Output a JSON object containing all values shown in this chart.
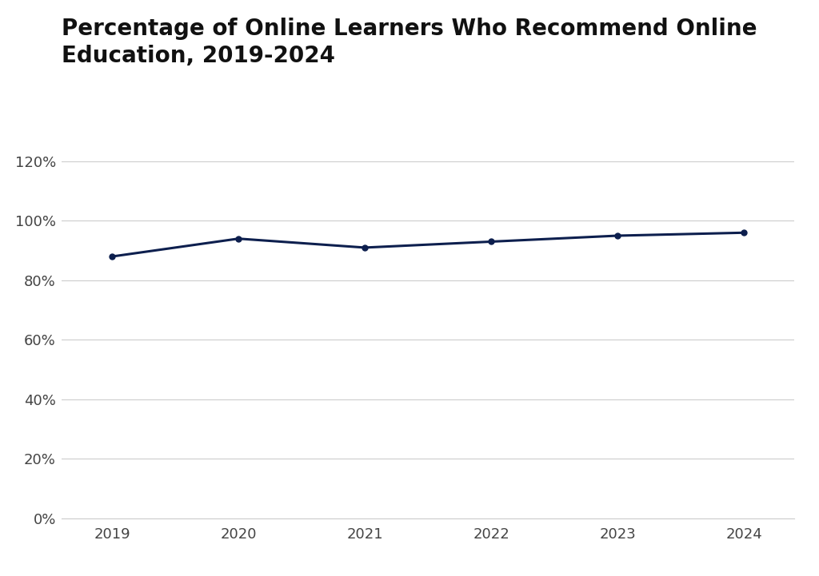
{
  "title_line1": "Percentage of Online Learners Who Recommend Online",
  "title_line2": "Education, 2019-2024",
  "x_values": [
    2019,
    2020,
    2021,
    2022,
    2023,
    2024
  ],
  "y_values": [
    0.88,
    0.94,
    0.91,
    0.93,
    0.95,
    0.96
  ],
  "line_color": "#0d1f4e",
  "marker": "o",
  "marker_size": 5,
  "line_width": 2.2,
  "ylim": [
    0,
    1.2
  ],
  "yticks": [
    0,
    0.2,
    0.4,
    0.6,
    0.8,
    1.0,
    1.2
  ],
  "ytick_labels": [
    "0%",
    "20%",
    "40%",
    "60%",
    "80%",
    "100%",
    "120%"
  ],
  "xticks": [
    2019,
    2020,
    2021,
    2022,
    2023,
    2024
  ],
  "xlim": [
    2018.6,
    2024.4
  ],
  "background_color": "#ffffff",
  "grid_color": "#cccccc",
  "title_fontsize": 20,
  "tick_fontsize": 13,
  "title_color": "#111111",
  "tick_color": "#444444"
}
